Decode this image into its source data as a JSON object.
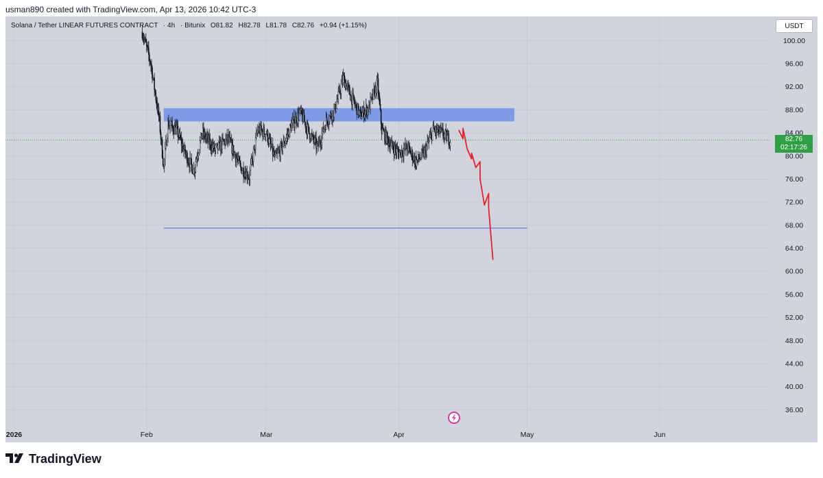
{
  "header": {
    "attribution": "usman890 created with TradingView.com, Apr 13, 2026 10:42 UTC-3"
  },
  "symbol_bar": {
    "name": "Solana / Tether LINEAR FUTURES CONTRACT",
    "interval": "4h",
    "exchange": "Bitunix",
    "open": "O81.82",
    "high": "H82.78",
    "low": "L81.78",
    "close": "C82.76",
    "change": "+0.94 (+1.15%)"
  },
  "currency_button": "USDT",
  "last_price": {
    "value": "82.76",
    "countdown": "02:17:26",
    "color": "#2e9f43"
  },
  "footer": {
    "logo_text": "TradingView"
  },
  "colors": {
    "background": "#d1d4dc",
    "zone": "#6f92e6",
    "support_line": "#5b8ce8",
    "projection": "#e8202a",
    "candle": "#131722"
  },
  "chart_data": {
    "type": "candlestick",
    "title": "Solana / Tether LINEAR FUTURES CONTRACT · 4h · Bitunix",
    "y_ticks": [
      "100.00",
      "96.00",
      "92.00",
      "88.00",
      "84.00",
      "80.00",
      "76.00",
      "72.00",
      "68.00",
      "64.00",
      "60.00",
      "56.00",
      "52.00",
      "48.00",
      "44.00",
      "40.00",
      "36.00"
    ],
    "x_ticks": [
      {
        "label": "2026",
        "date": "2026-01-01"
      },
      {
        "label": "Feb",
        "date": "2026-02-01"
      },
      {
        "label": "Mar",
        "date": "2026-03-01"
      },
      {
        "label": "Apr",
        "date": "2026-04-01"
      },
      {
        "label": "May",
        "date": "2026-05-01"
      },
      {
        "label": "Jun",
        "date": "2026-06-01"
      }
    ],
    "ylim": [
      32.6,
      104.2
    ],
    "xlim": [
      "2025-12-30",
      "2026-06-27"
    ],
    "price_path": [
      {
        "date": "2026-01-31",
        "value": 101.5
      },
      {
        "date": "2026-02-02",
        "value": 96.0
      },
      {
        "date": "2026-02-04",
        "value": 86.0
      },
      {
        "date": "2026-02-05",
        "value": 78.0
      },
      {
        "date": "2026-02-06",
        "value": 85.5
      },
      {
        "date": "2026-02-08",
        "value": 84.5
      },
      {
        "date": "2026-02-10",
        "value": 80.5
      },
      {
        "date": "2026-02-12",
        "value": 77.5
      },
      {
        "date": "2026-02-14",
        "value": 84.0
      },
      {
        "date": "2026-02-17",
        "value": 81.0
      },
      {
        "date": "2026-02-20",
        "value": 83.0
      },
      {
        "date": "2026-02-23",
        "value": 78.0
      },
      {
        "date": "2026-02-25",
        "value": 76.5
      },
      {
        "date": "2026-02-27",
        "value": 84.5
      },
      {
        "date": "2026-03-01",
        "value": 84.0
      },
      {
        "date": "2026-03-03",
        "value": 79.5
      },
      {
        "date": "2026-03-05",
        "value": 82.0
      },
      {
        "date": "2026-03-07",
        "value": 85.5
      },
      {
        "date": "2026-03-09",
        "value": 87.5
      },
      {
        "date": "2026-03-11",
        "value": 84.0
      },
      {
        "date": "2026-03-13",
        "value": 81.5
      },
      {
        "date": "2026-03-15",
        "value": 86.0
      },
      {
        "date": "2026-03-17",
        "value": 88.0
      },
      {
        "date": "2026-03-19",
        "value": 93.5
      },
      {
        "date": "2026-03-21",
        "value": 90.0
      },
      {
        "date": "2026-03-23",
        "value": 87.0
      },
      {
        "date": "2026-03-25",
        "value": 88.5
      },
      {
        "date": "2026-03-27",
        "value": 92.5
      },
      {
        "date": "2026-03-28",
        "value": 84.5
      },
      {
        "date": "2026-03-30",
        "value": 82.0
      },
      {
        "date": "2026-04-01",
        "value": 80.5
      },
      {
        "date": "2026-04-03",
        "value": 81.5
      },
      {
        "date": "2026-04-05",
        "value": 79.0
      },
      {
        "date": "2026-04-07",
        "value": 80.5
      },
      {
        "date": "2026-04-09",
        "value": 84.5
      },
      {
        "date": "2026-04-11",
        "value": 84.0
      },
      {
        "date": "2026-04-13",
        "value": 82.76
      }
    ],
    "annotations": [
      {
        "type": "rectangle",
        "from": "2026-02-05",
        "to": "2026-04-28",
        "low": 86.0,
        "high": 88.3
      },
      {
        "type": "horizontal_line",
        "from": "2026-02-05",
        "to": "2026-05-01",
        "value": 67.5
      },
      {
        "type": "projection_path",
        "points": [
          {
            "date": "2026-04-15",
            "value": 84.5
          },
          {
            "date": "2026-04-16",
            "value": 83.0
          },
          {
            "date": "2026-04-16",
            "value": 84.8
          },
          {
            "date": "2026-04-17",
            "value": 81.2
          },
          {
            "date": "2026-04-18",
            "value": 79.5
          },
          {
            "date": "2026-04-18",
            "value": 80.5
          },
          {
            "date": "2026-04-19",
            "value": 78.0
          },
          {
            "date": "2026-04-20",
            "value": 79.0
          },
          {
            "date": "2026-04-20",
            "value": 76.0
          },
          {
            "date": "2026-04-21",
            "value": 71.5
          },
          {
            "date": "2026-04-22",
            "value": 73.5
          },
          {
            "date": "2026-04-22",
            "value": 71.0
          },
          {
            "date": "2026-04-23",
            "value": 62.0
          }
        ]
      }
    ],
    "last_value": 82.76
  }
}
